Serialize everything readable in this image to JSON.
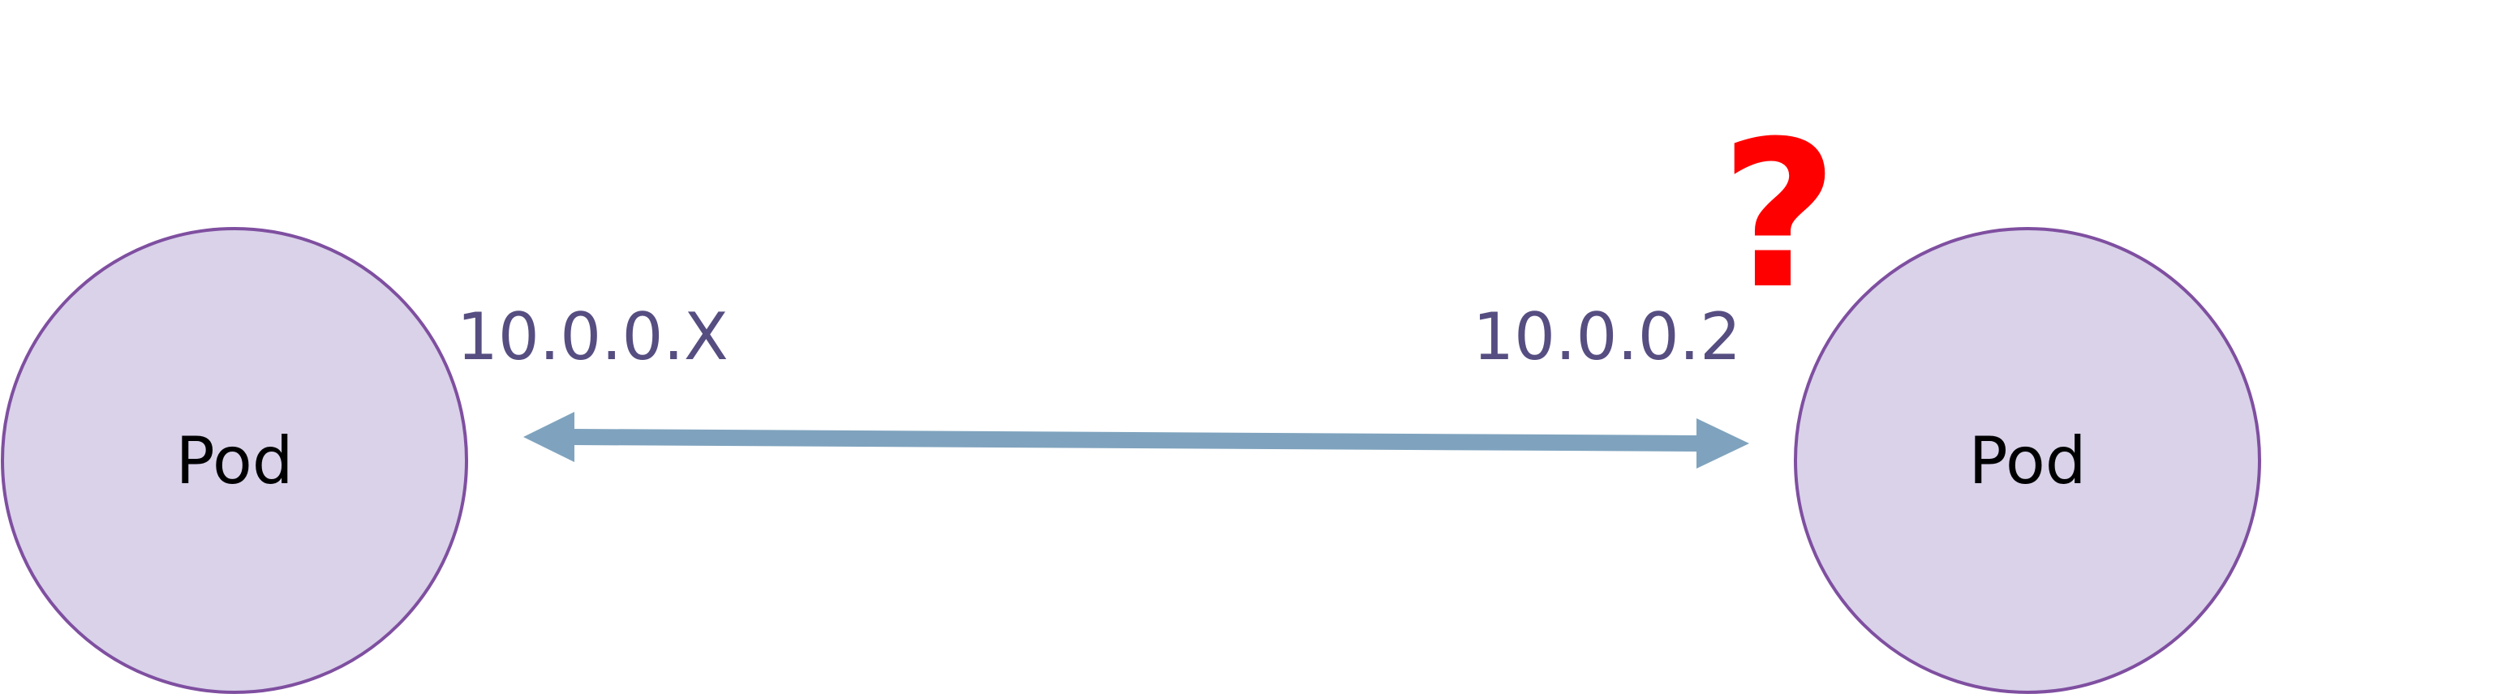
{
  "pods": [
    {
      "label": "Pod"
    },
    {
      "label": "Pod"
    }
  ],
  "left_ip": "10.0.0.X",
  "right_ip": "10.0.0.2",
  "question_mark": "?",
  "colors": {
    "pod_fill": "#d9d2e9",
    "pod_stroke": "#7f4fa0",
    "ip_text": "#564e81",
    "arrow": "#7fa3be",
    "question": "#ff0000"
  }
}
